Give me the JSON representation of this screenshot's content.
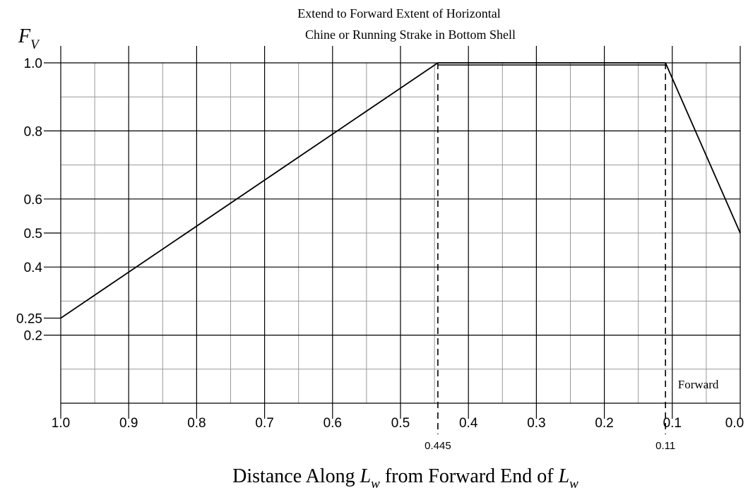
{
  "chart_data": {
    "type": "line",
    "title": "",
    "top_annotation": {
      "line1": "Extend to Forward Extent of Horizontal",
      "line2": "Chine or Running Strake in Bottom Shell"
    },
    "ylabel": {
      "symbol": "F",
      "subscript": "V"
    },
    "xlabel": {
      "prefix": "Distance Along ",
      "symbol1": "L",
      "sub1": "w",
      "middle": " from Forward End of ",
      "symbol2": "L",
      "sub2": "w"
    },
    "x_axis": {
      "range": [
        1.0,
        0.0
      ],
      "reversed": true,
      "major_step": 0.1,
      "minor_step": 0.05,
      "tick_labels": [
        "1.0",
        "0.9",
        "0.8",
        "0.7",
        "0.6",
        "0.5",
        "0.4",
        "0.3",
        "0.2",
        "0.1",
        "0.0"
      ],
      "tick_values": [
        1.0,
        0.9,
        0.8,
        0.7,
        0.6,
        0.5,
        0.4,
        0.3,
        0.2,
        0.1,
        0.0
      ],
      "extra_tick_labels": [
        {
          "value": 0.445,
          "label": "0.445"
        },
        {
          "value": 0.11,
          "label": "0.11"
        }
      ]
    },
    "y_axis": {
      "range": [
        0.0,
        1.0
      ],
      "major_step": 0.2,
      "minor_step": 0.1,
      "tick_labels": [
        {
          "value": 1.0,
          "label": "1.0"
        },
        {
          "value": 0.8,
          "label": "0.8"
        },
        {
          "value": 0.6,
          "label": "0.6"
        },
        {
          "value": 0.5,
          "label": "0.5"
        },
        {
          "value": 0.4,
          "label": "0.4"
        },
        {
          "value": 0.25,
          "label": "0.25"
        },
        {
          "value": 0.2,
          "label": "0.2"
        }
      ]
    },
    "grid": true,
    "series": [
      {
        "points": [
          {
            "x": 1.0,
            "y": 0.25
          },
          {
            "x": 0.445,
            "y": 1.0
          },
          {
            "x": 0.11,
            "y": 1.0
          },
          {
            "x": 0.0,
            "y": 0.5
          }
        ]
      }
    ],
    "reference_lines": [
      {
        "x": 0.445,
        "style": "dashed"
      },
      {
        "x": 0.11,
        "style": "dashed"
      }
    ],
    "annotations": [
      {
        "text": "Forward",
        "x": 0.1,
        "y": 0.05
      }
    ],
    "colors": {
      "line": "#000000",
      "major_grid": "#000000",
      "minor_grid": "#999999",
      "background": "#ffffff"
    }
  }
}
